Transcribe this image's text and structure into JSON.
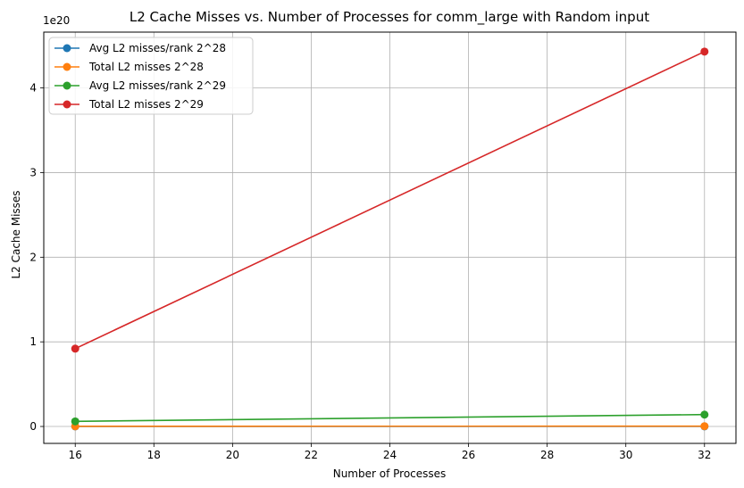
{
  "chart_data": {
    "type": "line",
    "title": "L2 Cache Misses vs. Number of Processes for comm_large with Random input",
    "xlabel": "Number of Processes",
    "ylabel": "L2 Cache Misses",
    "y_offset_label": "1e20",
    "xlim": [
      15.2,
      32.8
    ],
    "ylim": [
      -0.2,
      4.66
    ],
    "y_unit_multiplier": 1e+20,
    "x_ticks": [
      16,
      18,
      20,
      22,
      24,
      26,
      28,
      30,
      32
    ],
    "y_ticks": [
      0,
      1,
      2,
      3,
      4
    ],
    "grid": true,
    "legend_position": "top-left",
    "x": [
      16,
      32
    ],
    "series": [
      {
        "name": "Avg L2 misses/rank 2^28",
        "color": "#1f77b4",
        "values": [
          0.001,
          0.001
        ]
      },
      {
        "name": "Total L2 misses 2^28",
        "color": "#ff7f0e",
        "values": [
          0.002,
          0.003
        ]
      },
      {
        "name": "Avg L2 misses/rank 2^29",
        "color": "#2ca02c",
        "values": [
          0.06,
          0.14
        ]
      },
      {
        "name": "Total L2 misses 2^29",
        "color": "#d62728",
        "values": [
          0.92,
          4.43
        ]
      }
    ]
  }
}
